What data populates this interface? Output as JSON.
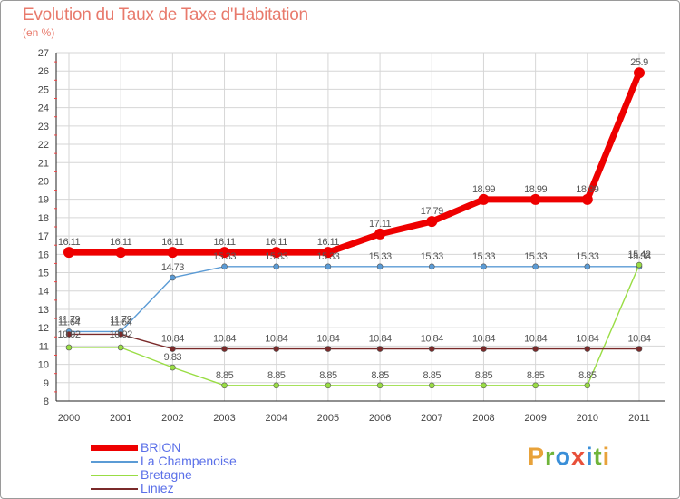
{
  "title": "Evolution du Taux de Taxe d'Habitation",
  "subtitle": "(en %)",
  "logo": {
    "text": "Proxiti",
    "colors": [
      "#e8a23a",
      "#6fb43a",
      "#3a8fd8",
      "#e8503a",
      "#3a8fd8",
      "#6fb43a",
      "#e8a23a"
    ]
  },
  "chart_data": {
    "type": "line",
    "title": "Evolution du Taux de Taxe d'Habitation",
    "ylabel": "(en %)",
    "xlabel": "",
    "ylim": [
      8,
      27
    ],
    "yticks": [
      "8",
      "9",
      "10",
      "11",
      "12",
      "13",
      "14",
      "15",
      "16",
      "17",
      "18",
      "19",
      "20",
      "21",
      "22",
      "23",
      "24",
      "25",
      "26",
      "27"
    ],
    "categories": [
      "2000",
      "2001",
      "2002",
      "2003",
      "2004",
      "2005",
      "2006",
      "2007",
      "2008",
      "2009",
      "2010",
      "2011"
    ],
    "legend_position": "bottom-left",
    "series": [
      {
        "name": "BRION",
        "color": "#ee0000",
        "values": [
          16.11,
          16.11,
          16.11,
          16.11,
          16.11,
          16.11,
          17.11,
          17.79,
          18.99,
          18.99,
          18.99,
          25.9
        ],
        "labels": [
          "16.11",
          "16.11",
          "16.11",
          "16.11",
          "16.11",
          "16.11",
          "17.11",
          "17.79",
          "18.99",
          "18.99",
          "18.99",
          "25.9"
        ]
      },
      {
        "name": "La Champenoise",
        "color": "#5b9bd5",
        "values": [
          11.79,
          11.79,
          14.73,
          15.33,
          15.33,
          15.33,
          15.33,
          15.33,
          15.33,
          15.33,
          15.33,
          15.33
        ],
        "labels": [
          "11.79",
          "11.79",
          "14.73",
          "15.33",
          "15.33",
          "15.33",
          "15.33",
          "15.33",
          "15.33",
          "15.33",
          "15.33",
          "15.33"
        ]
      },
      {
        "name": "Bretagne",
        "color": "#99dd44",
        "values": [
          10.92,
          10.92,
          9.83,
          8.85,
          8.85,
          8.85,
          8.85,
          8.85,
          8.85,
          8.85,
          8.85,
          15.42
        ],
        "labels": [
          "10.92",
          "10.92",
          "9.83",
          "8.85",
          "8.85",
          "8.85",
          "8.85",
          "8.85",
          "8.85",
          "8.85",
          "8.85",
          "15.42"
        ]
      },
      {
        "name": "Liniez",
        "color": "#7a2a2a",
        "values": [
          11.64,
          11.64,
          10.84,
          10.84,
          10.84,
          10.84,
          10.84,
          10.84,
          10.84,
          10.84,
          10.84,
          10.84
        ],
        "labels": [
          "11.64",
          "11.64",
          "10.84",
          "10.84",
          "10.84",
          "10.84",
          "10.84",
          "10.84",
          "10.84",
          "10.84",
          "10.84",
          "10.84"
        ]
      }
    ]
  }
}
